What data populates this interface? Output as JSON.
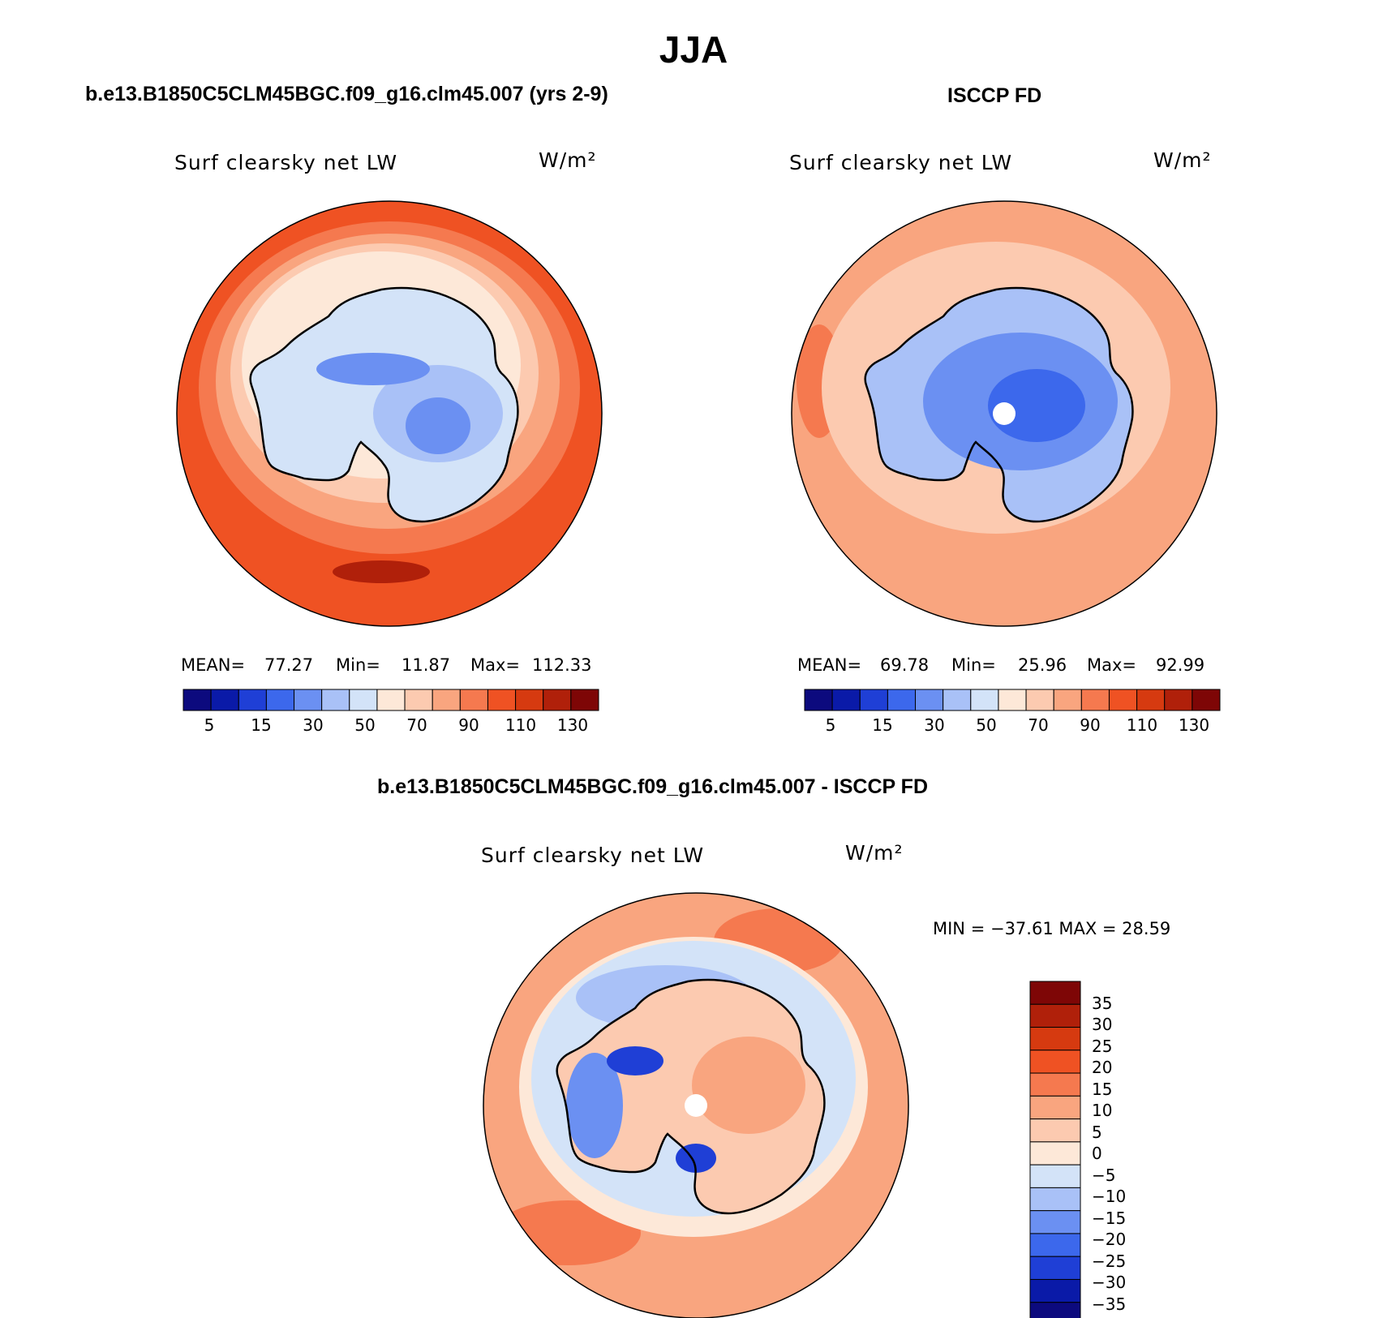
{
  "page": {
    "title": "JJA"
  },
  "panels": [
    {
      "title": "b.e13.B1850C5CLM45BGC.f09_g16.clm45.007 (yrs 2-9)",
      "variable": "Surf clearsky net LW",
      "units": "W/m²",
      "stats": {
        "mean_label": "MEAN=",
        "mean": "77.27",
        "min_label": "Min=",
        "min": "11.87",
        "max_label": "Max=",
        "max": "112.33"
      },
      "colorbar_ticks": [
        "5",
        "15",
        "30",
        "50",
        "70",
        "90",
        "110",
        "130"
      ]
    },
    {
      "title": "ISCCP FD",
      "variable": "Surf clearsky net LW",
      "units": "W/m²",
      "stats": {
        "mean_label": "MEAN=",
        "mean": "69.78",
        "min_label": "Min=",
        "min": "25.96",
        "max_label": "Max=",
        "max": "92.99"
      },
      "colorbar_ticks": [
        "5",
        "15",
        "30",
        "50",
        "70",
        "90",
        "110",
        "130"
      ]
    },
    {
      "title": "b.e13.B1850C5CLM45BGC.f09_g16.clm45.007 - ISCCP FD",
      "variable": "Surf clearsky net LW",
      "units": "W/m²",
      "minmax": {
        "text": "MIN = −37.61 MAX =  28.59",
        "min": -37.61,
        "max": 28.59
      },
      "colorbar_ticks": [
        "35",
        "30",
        "25",
        "20",
        "15",
        "10",
        "5",
        "0",
        "−5",
        "−10",
        "−15",
        "−20",
        "−25",
        "−30",
        "−35"
      ]
    }
  ],
  "colors": {
    "abs_scale": [
      "#0c0a7e",
      "#0a1aa8",
      "#1f3fd6",
      "#3c68ec",
      "#6b90f2",
      "#a9c1f7",
      "#d3e3f8",
      "#fde8d8",
      "#fccab0",
      "#f9a57f",
      "#f5794f",
      "#ef5223",
      "#d63a10",
      "#b0200a",
      "#7e0606"
    ],
    "diff_scale": [
      "#7e0606",
      "#b0200a",
      "#d63a10",
      "#ef5223",
      "#f5794f",
      "#f9a57f",
      "#fccab0",
      "#fde8d8",
      "#d3e3f8",
      "#a9c1f7",
      "#6b90f2",
      "#3c68ec",
      "#1f3fd6",
      "#0a1aa8",
      "#0c0a7e"
    ]
  }
}
